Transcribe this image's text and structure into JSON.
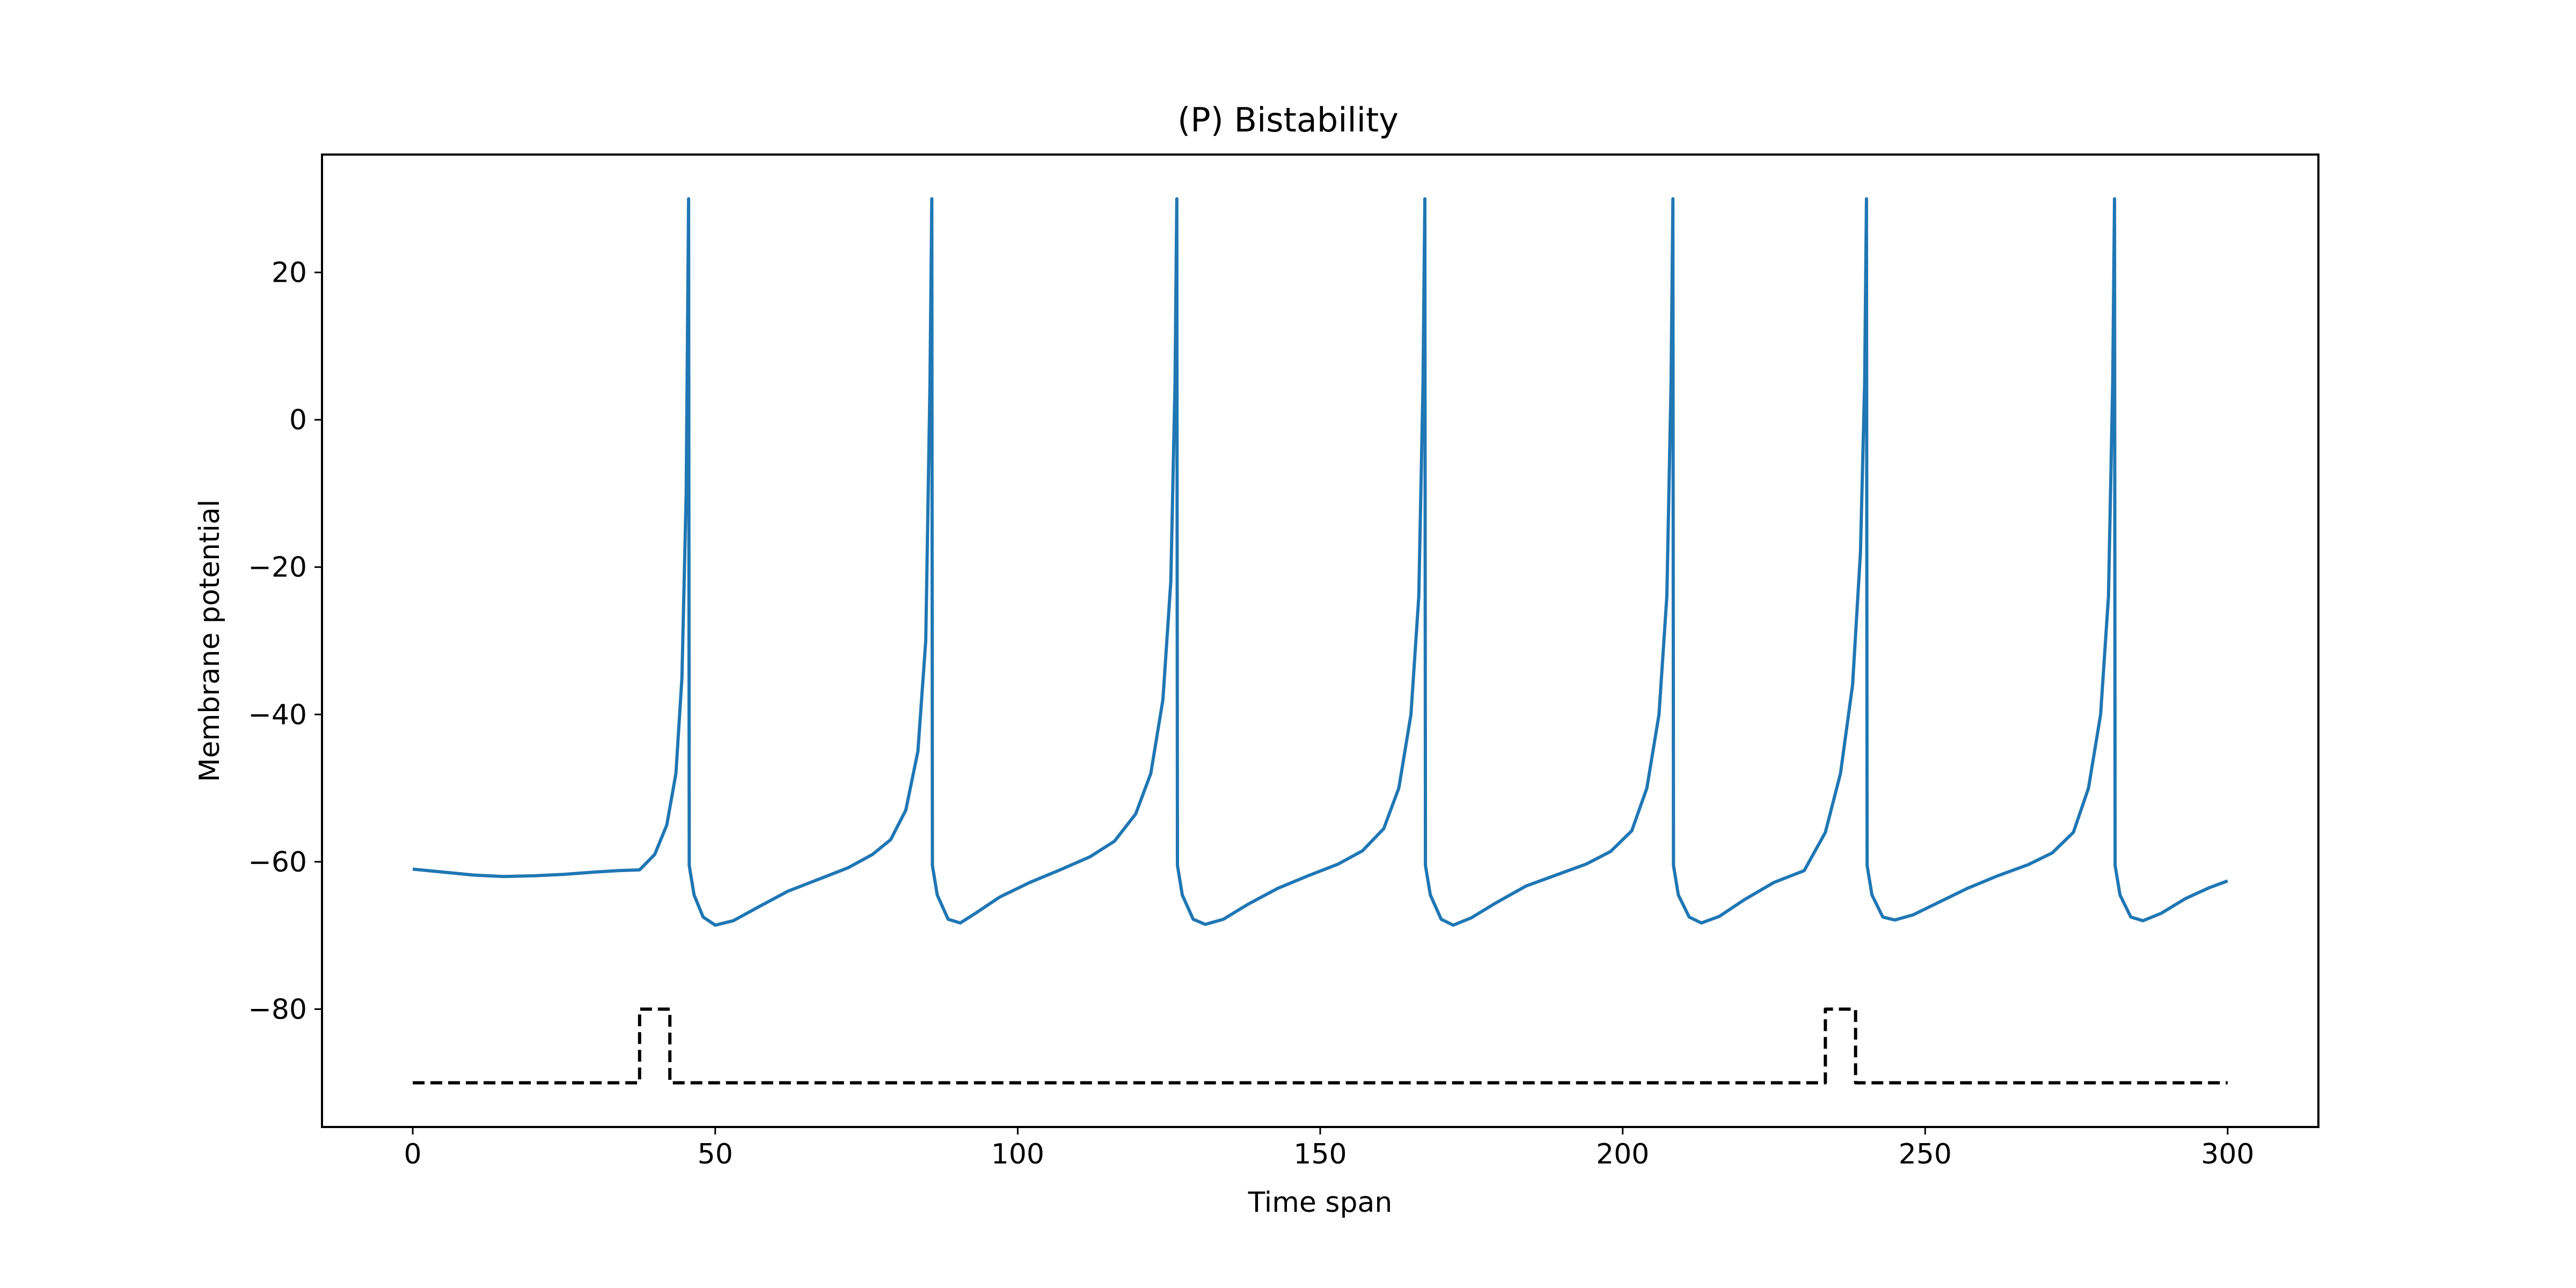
{
  "chart_data": {
    "type": "line",
    "title": "(P) Bistability",
    "xlabel": "Time span",
    "ylabel": "Membrane potential",
    "xlim": [
      -15,
      315
    ],
    "ylim": [
      -96,
      36
    ],
    "xticks": [
      0,
      50,
      100,
      150,
      200,
      250,
      300
    ],
    "yticks": [
      -80,
      -60,
      -40,
      -20,
      0,
      20
    ],
    "tick_labels_x": [
      "0",
      "50",
      "100",
      "150",
      "200",
      "250",
      "300"
    ],
    "tick_labels_y": [
      "−80",
      "−60",
      "−40",
      "−20",
      "0",
      "20"
    ],
    "grid": false,
    "legend": "none",
    "series": [
      {
        "style": "solid",
        "color": "#1f77b4",
        "x": [
          0,
          5,
          10,
          15,
          20,
          25,
          30,
          34,
          37.5,
          40,
          42,
          43.5,
          44.5,
          45.2,
          45.5,
          45.6,
          45.7,
          46.5,
          48,
          50,
          53,
          57,
          62,
          67,
          72,
          76,
          79,
          81.5,
          83.5,
          84.8,
          85.5,
          85.8,
          85.9,
          86.7,
          88.5,
          90.5,
          93,
          97,
          102,
          107,
          112,
          116,
          119.5,
          122,
          124,
          125.3,
          126,
          126.3,
          126.4,
          127.2,
          129,
          131,
          134,
          138,
          143,
          148,
          153,
          157,
          160.5,
          163,
          165,
          166.3,
          167,
          167.3,
          167.4,
          168.2,
          170,
          172,
          175,
          179,
          184,
          189,
          194,
          198,
          201.5,
          204,
          206,
          207.3,
          208,
          208.3,
          208.4,
          209.2,
          211,
          213,
          216,
          220,
          225,
          230,
          233.5,
          236,
          238,
          239.3,
          240,
          240.3,
          240.4,
          241.2,
          243,
          245,
          248,
          252,
          257,
          262,
          267,
          271,
          274.5,
          277,
          279,
          280.3,
          281,
          281.3,
          281.4,
          282.2,
          284,
          286,
          289,
          293,
          297,
          300
        ],
        "y": [
          -61,
          -61.4,
          -61.8,
          -62,
          -61.9,
          -61.7,
          -61.4,
          -61.2,
          -61.1,
          -59,
          -55,
          -48,
          -35,
          -10,
          20,
          30,
          -60.5,
          -64.5,
          -67.5,
          -68.6,
          -68,
          -66.2,
          -64,
          -62.4,
          -60.8,
          -59,
          -57,
          -53,
          -45,
          -30,
          5,
          30,
          -60.5,
          -64.5,
          -67.8,
          -68.3,
          -67,
          -64.8,
          -62.8,
          -61.1,
          -59.3,
          -57.2,
          -53.5,
          -48,
          -38,
          -22,
          5,
          30,
          -60.5,
          -64.5,
          -67.8,
          -68.5,
          -67.8,
          -65.8,
          -63.6,
          -61.9,
          -60.3,
          -58.5,
          -55.5,
          -50,
          -40,
          -24,
          5,
          30,
          -60.5,
          -64.5,
          -67.8,
          -68.6,
          -67.6,
          -65.6,
          -63.3,
          -61.8,
          -60.3,
          -58.6,
          -55.8,
          -50,
          -40,
          -24,
          5,
          30,
          -60.5,
          -64.5,
          -67.5,
          -68.3,
          -67.4,
          -65.2,
          -62.8,
          -61.2,
          -56,
          -48,
          -36,
          -18,
          5,
          30,
          -60.5,
          -64.5,
          -67.5,
          -67.9,
          -67.2,
          -65.6,
          -63.6,
          -61.9,
          -60.4,
          -58.8,
          -56,
          -50,
          -40,
          -24,
          5,
          30,
          -60.5,
          -64.5,
          -67.5,
          -68,
          -67,
          -65,
          -63.5,
          -62.6
        ]
      },
      {
        "style": "dashed",
        "color": "#000000",
        "x": [
          0,
          37.5,
          37.5,
          42.5,
          42.5,
          233.5,
          233.5,
          238.5,
          238.5,
          300
        ],
        "y": [
          -90,
          -90,
          -80,
          -80,
          -90,
          -90,
          -80,
          -80,
          -90,
          -90
        ]
      }
    ]
  }
}
